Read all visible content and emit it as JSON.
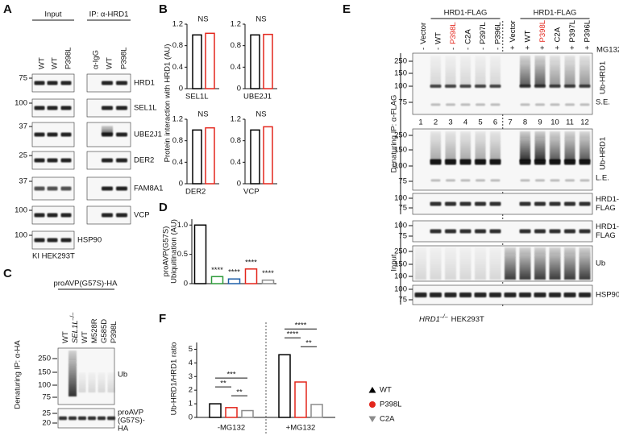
{
  "panel_a": {
    "letter": "A",
    "input_label": "Input",
    "ip_label": "IP: α-HRD1",
    "input_lanes": [
      {
        "label": "WT",
        "color": "#000000"
      },
      {
        "label": "WT",
        "color": "#000000"
      },
      {
        "label": "P398L",
        "color": "#e3261c"
      }
    ],
    "ip_lanes": [
      {
        "label": "α-IgG",
        "color": "#000000"
      },
      {
        "label": "WT",
        "color": "#000000"
      },
      {
        "label": "P398L",
        "color": "#e3261c"
      }
    ],
    "blots": [
      {
        "marker": 75,
        "label": "HRD1"
      },
      {
        "marker": 100,
        "label": "SEL1L"
      },
      {
        "marker": 37,
        "label": "UBE2J1"
      },
      {
        "marker": 25,
        "label": "DER2"
      },
      {
        "marker": 37,
        "label": "FAM8A1"
      },
      {
        "marker": 100,
        "label": "VCP"
      },
      {
        "marker": 100,
        "label": "HSP90"
      }
    ],
    "cell_line": "KI HEK293T"
  },
  "panel_b": {
    "letter": "B",
    "y_label": "Protein interaction with HRD1 (AU)",
    "ylim": [
      0,
      1.2
    ],
    "yticks": [
      0,
      0.4,
      0.8,
      1.2
    ],
    "colors": [
      "#000000",
      "#e3261c"
    ],
    "charts": [
      {
        "title": "SEL1L",
        "annotation": "NS",
        "values": [
          1,
          1.03
        ]
      },
      {
        "title": "UBE2J1",
        "annotation": "NS",
        "values": [
          1,
          1.01
        ]
      },
      {
        "title": "DER2",
        "annotation": "NS",
        "values": [
          1,
          1.04
        ]
      },
      {
        "title": "VCP",
        "annotation": "NS",
        "values": [
          1,
          1.06
        ]
      }
    ]
  },
  "panel_c": {
    "letter": "C",
    "header": "proAVP(G57S)-HA",
    "lanes": [
      {
        "label": "WT",
        "color": "#000000"
      },
      {
        "label": "SEL1L",
        "superscript": "–/–",
        "color": "#000000"
      },
      {
        "label": "WT",
        "color": "#000000"
      },
      {
        "label": "M528R",
        "color": "#1f5fa8"
      },
      {
        "label": "G585D",
        "color": "#2e9a3a"
      },
      {
        "label": "P398L",
        "color": "#e3261c"
      }
    ],
    "side_label": "Denaturing IP: α-HA",
    "blots": [
      {
        "markers": [
          250,
          150,
          100,
          75
        ],
        "label": [
          "Ub"
        ]
      },
      {
        "markers": [
          25,
          20
        ],
        "label": [
          "proAVP",
          "(G57S)-",
          "HA"
        ]
      }
    ]
  },
  "panel_d": {
    "letter": "D",
    "y_label": [
      "proAVP(G57S)",
      "Ubiquitination (AU)"
    ],
    "ylim": [
      0,
      1.1
    ],
    "yticks": [
      0,
      0.5,
      {
        "value": 1,
        "label": "1.0"
      }
    ],
    "values": [
      1.0,
      0.12,
      0.08,
      0.25,
      0.06
    ],
    "colors": [
      "#000000",
      "#2e9a3a",
      "#1f5fa8",
      "#e3261c",
      "#8c8c8c"
    ],
    "annotations": [
      {
        "text": "****",
        "color": "#2e9a3a"
      },
      {
        "text": "****",
        "color": "#1f5fa8"
      },
      {
        "text": "****",
        "color": "#e3261c"
      },
      {
        "text": "****",
        "color": "#8c8c8c"
      }
    ]
  },
  "panel_e": {
    "letter": "E",
    "group_labels": [
      "HRD1-FLAG",
      "HRD1-FLAG"
    ],
    "lanes": [
      {
        "label": "Vector",
        "treatment": "-",
        "number": 1,
        "color": "#000000"
      },
      {
        "label": "WT",
        "treatment": "-",
        "number": 2,
        "color": "#000000"
      },
      {
        "label": "P398L",
        "treatment": "-",
        "number": 3,
        "color": "#e3261c"
      },
      {
        "label": "C2A",
        "treatment": "-",
        "number": 4,
        "color": "#000000"
      },
      {
        "label": "P397L",
        "treatment": "-",
        "number": 5,
        "color": "#000000"
      },
      {
        "label": "P396L",
        "treatment": "-",
        "number": 6,
        "color": "#000000"
      },
      {
        "label": "Vector",
        "treatment": "+",
        "number": 7,
        "color": "#000000"
      },
      {
        "label": "WT",
        "treatment": "+",
        "number": 8,
        "color": "#000000"
      },
      {
        "label": "P398L",
        "treatment": "+",
        "number": 9,
        "color": "#e3261c"
      },
      {
        "label": "C2A",
        "treatment": "+",
        "number": 10,
        "color": "#000000"
      },
      {
        "label": "P397L",
        "treatment": "+",
        "number": 11,
        "color": "#000000"
      },
      {
        "label": "P396L",
        "treatment": "+",
        "number": 12,
        "color": "#000000"
      }
    ],
    "treatment_label": "MG132",
    "ip_label": "Denaturing IP: α-FLAG",
    "input_label": "Input",
    "ip_blots": [
      {
        "markers": [
          250,
          150,
          100,
          75
        ],
        "label": [
          "Ub-HRD1"
        ],
        "exposure": "S.E."
      },
      {
        "markers": [
          250,
          150,
          100,
          75
        ],
        "label": [
          "Ub-HRD1"
        ],
        "exposure": "L.E."
      },
      {
        "markers": [
          100,
          75
        ],
        "label": [
          "HRD1-",
          "FLAG"
        ]
      }
    ],
    "input_blots": [
      {
        "markers": [
          100,
          75
        ],
        "label": [
          "HRD1-",
          "FLAG"
        ]
      },
      {
        "markers": [
          250,
          150,
          100
        ],
        "label": [
          "Ub"
        ]
      },
      {
        "markers": [
          100,
          75
        ],
        "label": [
          "HSP90"
        ]
      }
    ],
    "cell_line": {
      "gene": "HRD1",
      "superscript": "–/–",
      "rest": "HEK293T"
    }
  },
  "panel_f": {
    "letter": "F",
    "y_label": "Ub-HRD1/HRD1 ratio",
    "ylim": [
      0,
      5.5
    ],
    "yticks": [
      0,
      1,
      2,
      3,
      4,
      5
    ],
    "groups": [
      "-MG132",
      "+MG132"
    ],
    "series": [
      {
        "name": "WT",
        "color": "#000000",
        "values": [
          1.0,
          4.6
        ]
      },
      {
        "name": "P398L",
        "color": "#e3261c",
        "values": [
          0.72,
          2.6
        ]
      },
      {
        "name": "C2A",
        "color": "#8c8c8c",
        "values": [
          0.5,
          0.95
        ]
      }
    ],
    "significance": [
      [
        "**",
        "***",
        "**"
      ],
      [
        "****",
        "****",
        "**"
      ]
    ]
  }
}
